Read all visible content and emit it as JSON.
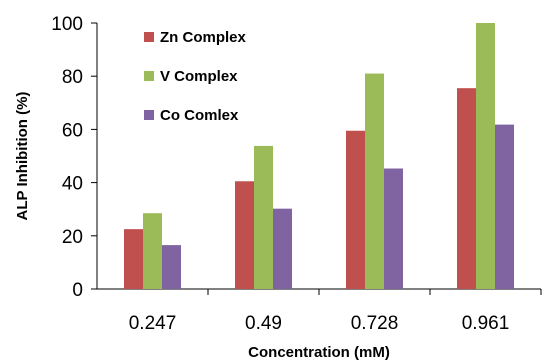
{
  "chart_data": {
    "type": "bar",
    "categories": [
      "0.247",
      "0.49",
      "0.728",
      "0.961"
    ],
    "series": [
      {
        "name": "Zn Complex",
        "values": [
          22.5,
          40.5,
          59.5,
          75.5
        ],
        "color": "#c0504d"
      },
      {
        "name": "V Complex",
        "values": [
          28.5,
          53.8,
          81.0,
          100.0
        ],
        "color": "#9bbb59"
      },
      {
        "name": "Co Comlex",
        "values": [
          16.5,
          30.2,
          45.3,
          61.8
        ],
        "color": "#8064a2"
      }
    ],
    "xlabel": "Concentration (mM)",
    "ylabel": "ALP Inhibition (%)",
    "ylim": [
      0,
      100
    ],
    "yticks": [
      0,
      20,
      40,
      60,
      80,
      100
    ],
    "grid": false,
    "legend_position": "top-left"
  }
}
